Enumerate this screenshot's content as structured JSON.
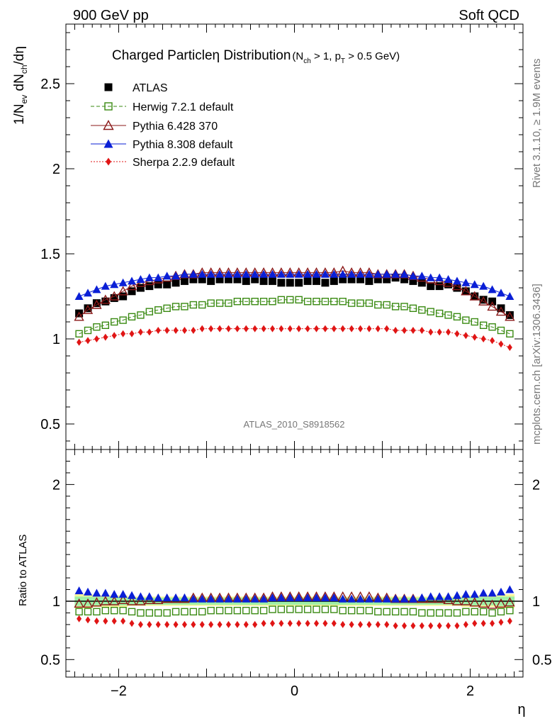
{
  "header": {
    "left": "900 GeV pp",
    "right": "Soft QCD"
  },
  "side": {
    "rivet": "Rivet 3.1.10, ≥ 1.9M events",
    "mcplots": "mcplots.cern.ch [arXiv:1306.3436]"
  },
  "title": {
    "main": "Charged Particleη Distribution",
    "cuts": "(N",
    "cuts_sub1": "ch",
    "cuts_mid": " > 1, p",
    "cuts_sub2": "T",
    "cuts_end": " > 0.5 GeV)"
  },
  "watermark": "ATLAS_2010_S8918562",
  "axes": {
    "xlabel": "η",
    "ylabel_top": "1/N",
    "ylabel_sub_ev": "ev",
    "ylabel_mid": " dN",
    "ylabel_sub_ch": "ch",
    "ylabel_end": "/dη",
    "ylabel_bottom": "Ratio to ATLAS"
  },
  "colors": {
    "atlas": "#000000",
    "herwig": "#3a8a12",
    "pythia6": "#8b1a1a",
    "pythia8": "#0a1fd6",
    "sherpa": "#e01515",
    "band_yellow": "#f7f59a",
    "band_green": "#9ef0a6"
  },
  "chart_data": [
    {
      "type": "scatter",
      "panel": "main",
      "xlim": [
        -2.6,
        2.6
      ],
      "ylim": [
        0.35,
        2.85
      ],
      "yticks": [
        "0.5",
        "1",
        "1.5",
        "2",
        "2.5"
      ],
      "ytick_values": [
        0.5,
        1,
        1.5,
        2,
        2.5
      ],
      "legend_position": "top-left",
      "x": [
        -2.45,
        -2.35,
        -2.25,
        -2.15,
        -2.05,
        -1.95,
        -1.85,
        -1.75,
        -1.65,
        -1.55,
        -1.45,
        -1.35,
        -1.25,
        -1.15,
        -1.05,
        -0.95,
        -0.85,
        -0.75,
        -0.65,
        -0.55,
        -0.45,
        -0.35,
        -0.25,
        -0.15,
        -0.05,
        0.05,
        0.15,
        0.25,
        0.35,
        0.45,
        0.55,
        0.65,
        0.75,
        0.85,
        0.95,
        1.05,
        1.15,
        1.25,
        1.35,
        1.45,
        1.55,
        1.65,
        1.75,
        1.85,
        1.95,
        2.05,
        2.15,
        2.25,
        2.35,
        2.45
      ],
      "series": [
        {
          "name": "ATLAS",
          "marker": "square-filled",
          "line": "none",
          "values": [
            1.15,
            1.18,
            1.21,
            1.22,
            1.24,
            1.25,
            1.28,
            1.3,
            1.31,
            1.32,
            1.32,
            1.33,
            1.34,
            1.35,
            1.35,
            1.34,
            1.35,
            1.35,
            1.35,
            1.34,
            1.35,
            1.34,
            1.34,
            1.33,
            1.33,
            1.33,
            1.34,
            1.34,
            1.33,
            1.34,
            1.35,
            1.35,
            1.35,
            1.34,
            1.35,
            1.35,
            1.36,
            1.35,
            1.34,
            1.33,
            1.31,
            1.31,
            1.32,
            1.3,
            1.28,
            1.25,
            1.23,
            1.22,
            1.18,
            1.14
          ]
        },
        {
          "name": "Herwig 7.2.1 default",
          "marker": "square-open",
          "line": "dashed",
          "values": [
            1.03,
            1.05,
            1.07,
            1.08,
            1.1,
            1.11,
            1.13,
            1.14,
            1.16,
            1.17,
            1.18,
            1.19,
            1.19,
            1.2,
            1.2,
            1.21,
            1.21,
            1.21,
            1.22,
            1.22,
            1.22,
            1.22,
            1.22,
            1.23,
            1.23,
            1.23,
            1.22,
            1.22,
            1.22,
            1.22,
            1.22,
            1.21,
            1.21,
            1.21,
            1.2,
            1.2,
            1.19,
            1.19,
            1.18,
            1.17,
            1.16,
            1.15,
            1.14,
            1.13,
            1.11,
            1.1,
            1.08,
            1.07,
            1.05,
            1.03
          ]
        },
        {
          "name": "Pythia 6.428 370",
          "marker": "triangle-open",
          "line": "solid",
          "values": [
            1.13,
            1.17,
            1.2,
            1.23,
            1.25,
            1.28,
            1.31,
            1.33,
            1.34,
            1.35,
            1.36,
            1.37,
            1.38,
            1.38,
            1.39,
            1.39,
            1.39,
            1.39,
            1.39,
            1.39,
            1.39,
            1.39,
            1.39,
            1.39,
            1.39,
            1.39,
            1.39,
            1.39,
            1.39,
            1.39,
            1.4,
            1.39,
            1.39,
            1.39,
            1.38,
            1.38,
            1.38,
            1.38,
            1.37,
            1.36,
            1.35,
            1.34,
            1.33,
            1.31,
            1.28,
            1.25,
            1.22,
            1.19,
            1.16,
            1.13
          ]
        },
        {
          "name": "Pythia 8.308 default",
          "marker": "triangle-filled",
          "line": "solid",
          "values": [
            1.25,
            1.27,
            1.29,
            1.31,
            1.32,
            1.33,
            1.34,
            1.35,
            1.36,
            1.36,
            1.37,
            1.37,
            1.38,
            1.38,
            1.38,
            1.38,
            1.38,
            1.38,
            1.38,
            1.38,
            1.38,
            1.38,
            1.38,
            1.38,
            1.38,
            1.38,
            1.38,
            1.38,
            1.38,
            1.38,
            1.38,
            1.38,
            1.38,
            1.38,
            1.38,
            1.38,
            1.38,
            1.38,
            1.37,
            1.37,
            1.36,
            1.36,
            1.35,
            1.34,
            1.33,
            1.32,
            1.31,
            1.29,
            1.27,
            1.25
          ]
        },
        {
          "name": "Sherpa 2.2.9 default",
          "marker": "diamond-filled",
          "line": "dotted",
          "values": [
            0.98,
            0.99,
            1.0,
            1.01,
            1.02,
            1.03,
            1.03,
            1.04,
            1.04,
            1.05,
            1.05,
            1.05,
            1.05,
            1.05,
            1.06,
            1.06,
            1.06,
            1.06,
            1.06,
            1.06,
            1.06,
            1.06,
            1.06,
            1.06,
            1.06,
            1.06,
            1.06,
            1.06,
            1.06,
            1.06,
            1.06,
            1.06,
            1.06,
            1.06,
            1.06,
            1.06,
            1.05,
            1.05,
            1.05,
            1.05,
            1.04,
            1.04,
            1.04,
            1.03,
            1.02,
            1.01,
            1.0,
            0.99,
            0.97,
            0.95
          ]
        }
      ]
    },
    {
      "type": "scatter",
      "panel": "ratio",
      "xlim": [
        -2.6,
        2.6
      ],
      "ylim": [
        0.35,
        2.3
      ],
      "yticks": [
        "0.5",
        "1",
        "2"
      ],
      "ytick_values": [
        0.5,
        1,
        2
      ],
      "xticks": [
        "−2",
        "0",
        "2"
      ],
      "xtick_values": [
        -2,
        0,
        2
      ],
      "band_yellow_halfwidth": [
        0.06,
        0.06,
        0.05,
        0.05,
        0.05,
        0.05,
        0.04,
        0.04,
        0.04,
        0.04,
        0.04,
        0.04,
        0.04,
        0.04,
        0.04,
        0.04,
        0.04,
        0.04,
        0.04,
        0.04,
        0.04,
        0.04,
        0.04,
        0.04,
        0.04,
        0.04,
        0.04,
        0.04,
        0.04,
        0.04,
        0.04,
        0.04,
        0.04,
        0.04,
        0.04,
        0.04,
        0.04,
        0.04,
        0.04,
        0.04,
        0.04,
        0.04,
        0.04,
        0.04,
        0.05,
        0.05,
        0.05,
        0.05,
        0.06,
        0.06
      ],
      "band_green_halfwidth": [
        0.04,
        0.04,
        0.035,
        0.035,
        0.035,
        0.035,
        0.03,
        0.03,
        0.03,
        0.03,
        0.03,
        0.03,
        0.03,
        0.03,
        0.03,
        0.03,
        0.03,
        0.03,
        0.03,
        0.03,
        0.03,
        0.03,
        0.03,
        0.03,
        0.03,
        0.03,
        0.03,
        0.03,
        0.03,
        0.03,
        0.03,
        0.03,
        0.03,
        0.03,
        0.03,
        0.03,
        0.03,
        0.03,
        0.03,
        0.03,
        0.03,
        0.03,
        0.03,
        0.03,
        0.035,
        0.035,
        0.035,
        0.035,
        0.04,
        0.04
      ],
      "series": [
        {
          "name": "Herwig 7.2.1 default",
          "values": [
            0.91,
            0.91,
            0.91,
            0.92,
            0.92,
            0.92,
            0.91,
            0.9,
            0.9,
            0.9,
            0.9,
            0.91,
            0.91,
            0.91,
            0.91,
            0.92,
            0.92,
            0.92,
            0.92,
            0.92,
            0.92,
            0.92,
            0.93,
            0.93,
            0.93,
            0.93,
            0.93,
            0.93,
            0.93,
            0.93,
            0.92,
            0.92,
            0.92,
            0.92,
            0.91,
            0.91,
            0.91,
            0.91,
            0.91,
            0.9,
            0.9,
            0.9,
            0.9,
            0.9,
            0.91,
            0.91,
            0.91,
            0.9,
            0.91,
            0.92
          ]
        },
        {
          "name": "Pythia 6.428 370",
          "values": [
            0.98,
            0.98,
            0.99,
            1.0,
            1.0,
            1.01,
            1.0,
            1.0,
            1.01,
            1.01,
            1.02,
            1.02,
            1.02,
            1.03,
            1.03,
            1.03,
            1.03,
            1.03,
            1.03,
            1.03,
            1.03,
            1.03,
            1.04,
            1.04,
            1.04,
            1.04,
            1.04,
            1.04,
            1.04,
            1.04,
            1.04,
            1.04,
            1.04,
            1.04,
            1.03,
            1.03,
            1.02,
            1.02,
            1.02,
            1.02,
            1.02,
            1.02,
            1.01,
            1.0,
            1.0,
            0.99,
            0.98,
            0.97,
            0.98,
            0.99
          ]
        },
        {
          "name": "Pythia 8.308 default",
          "values": [
            1.09,
            1.08,
            1.07,
            1.07,
            1.06,
            1.06,
            1.05,
            1.04,
            1.04,
            1.03,
            1.03,
            1.03,
            1.03,
            1.02,
            1.02,
            1.02,
            1.02,
            1.02,
            1.02,
            1.02,
            1.02,
            1.02,
            1.03,
            1.03,
            1.03,
            1.03,
            1.03,
            1.03,
            1.03,
            1.03,
            1.02,
            1.02,
            1.02,
            1.02,
            1.02,
            1.02,
            1.02,
            1.02,
            1.02,
            1.03,
            1.04,
            1.04,
            1.04,
            1.05,
            1.06,
            1.06,
            1.07,
            1.07,
            1.08,
            1.1
          ]
        },
        {
          "name": "Sherpa 2.2.9 default",
          "values": [
            0.85,
            0.84,
            0.83,
            0.83,
            0.83,
            0.83,
            0.81,
            0.8,
            0.8,
            0.8,
            0.8,
            0.8,
            0.8,
            0.8,
            0.8,
            0.8,
            0.8,
            0.8,
            0.8,
            0.8,
            0.8,
            0.81,
            0.81,
            0.81,
            0.81,
            0.81,
            0.81,
            0.81,
            0.81,
            0.81,
            0.8,
            0.8,
            0.8,
            0.8,
            0.8,
            0.8,
            0.79,
            0.79,
            0.79,
            0.79,
            0.79,
            0.79,
            0.79,
            0.79,
            0.8,
            0.81,
            0.81,
            0.81,
            0.82,
            0.83
          ]
        }
      ]
    }
  ]
}
